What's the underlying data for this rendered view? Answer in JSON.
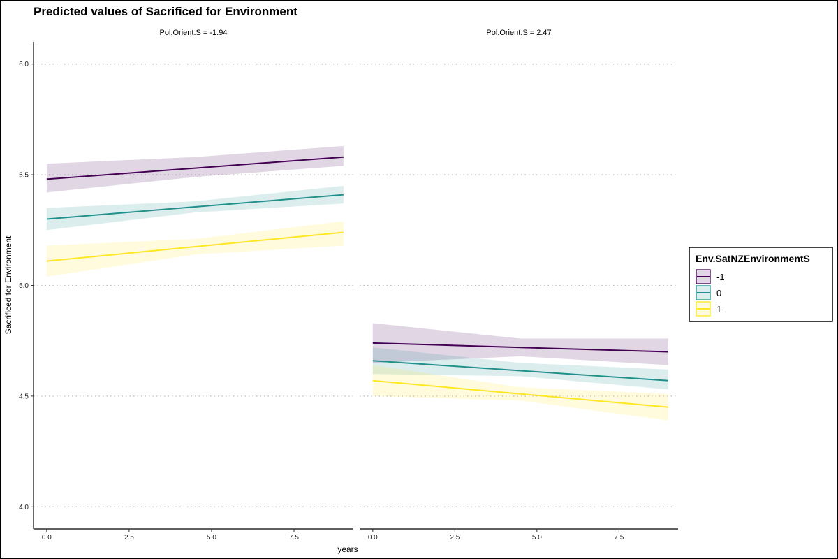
{
  "chart_data": {
    "type": "line",
    "title": "Predicted values of Sacrificed for Environment",
    "xlabel": "years",
    "ylabel": "Sacrificed for Environment",
    "xlim": [
      -0.4,
      9.3
    ],
    "ylim": [
      3.9,
      6.1
    ],
    "x_ticks": [
      0.0,
      2.5,
      5.0,
      7.5
    ],
    "x_tick_labels": [
      "0.0",
      "2.5",
      "5.0",
      "7.5"
    ],
    "y_ticks": [
      4.0,
      4.5,
      5.0,
      5.5,
      6.0
    ],
    "y_tick_labels": [
      "4.0",
      "4.5",
      "5.0",
      "5.5",
      "6.0"
    ],
    "grid": "horizontal dotted",
    "legend": {
      "title": "Env.SatNZEnvironmentS",
      "position": "right",
      "entries": [
        "-1",
        "0",
        "1"
      ]
    },
    "panels": [
      {
        "label": "Pol.Orient.S = -1.94",
        "series": [
          {
            "name": "-1",
            "color": "#440154",
            "x": [
              0,
              4.5,
              9
            ],
            "y": [
              5.48,
              5.53,
              5.58
            ],
            "lower": [
              5.42,
              5.49,
              5.54
            ],
            "upper": [
              5.55,
              5.58,
              5.63
            ]
          },
          {
            "name": "0",
            "color": "#21908C",
            "x": [
              0,
              4.5,
              9
            ],
            "y": [
              5.3,
              5.355,
              5.41
            ],
            "lower": [
              5.25,
              5.33,
              5.37
            ],
            "upper": [
              5.35,
              5.38,
              5.45
            ]
          },
          {
            "name": "1",
            "color": "#FDE725",
            "x": [
              0,
              4.5,
              9
            ],
            "y": [
              5.11,
              5.175,
              5.24
            ],
            "lower": [
              5.04,
              5.14,
              5.18
            ],
            "upper": [
              5.18,
              5.21,
              5.29
            ]
          }
        ]
      },
      {
        "label": "Pol.Orient.S = 2.47",
        "series": [
          {
            "name": "-1",
            "color": "#440154",
            "x": [
              0,
              4.5,
              9
            ],
            "y": [
              4.74,
              4.72,
              4.7
            ],
            "lower": [
              4.65,
              4.68,
              4.64
            ],
            "upper": [
              4.83,
              4.76,
              4.76
            ]
          },
          {
            "name": "0",
            "color": "#21908C",
            "x": [
              0,
              4.5,
              9
            ],
            "y": [
              4.66,
              4.615,
              4.57
            ],
            "lower": [
              4.6,
              4.59,
              4.53
            ],
            "upper": [
              4.72,
              4.65,
              4.62
            ]
          },
          {
            "name": "1",
            "color": "#FDE725",
            "x": [
              0,
              4.5,
              9
            ],
            "y": [
              4.57,
              4.51,
              4.45
            ],
            "lower": [
              4.5,
              4.48,
              4.39
            ],
            "upper": [
              4.64,
              4.54,
              4.51
            ]
          }
        ]
      }
    ]
  }
}
